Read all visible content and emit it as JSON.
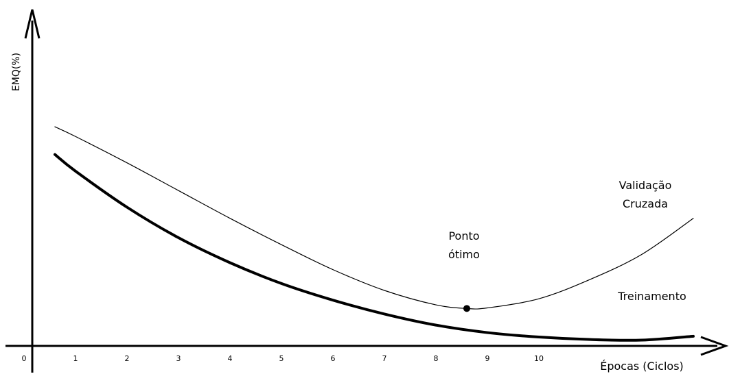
{
  "chart_data": {
    "type": "line",
    "title": "",
    "ylabel": "EMQ(%)",
    "xlabel": "Épocas (Ciclos)",
    "x_ticks": [
      "0",
      "1",
      "2",
      "3",
      "4",
      "5",
      "6",
      "7",
      "8",
      "9",
      "10"
    ],
    "xlim": [
      0,
      13.3
    ],
    "ylim": [
      0,
      100
    ],
    "grid": false,
    "series": [
      {
        "name": "Validação Cruzada",
        "stroke": "thin",
        "points": [
          [
            0.6,
            79
          ],
          [
            1.0,
            75.5
          ],
          [
            2.0,
            66
          ],
          [
            3.0,
            56
          ],
          [
            4.0,
            46
          ],
          [
            5.0,
            36.5
          ],
          [
            6.0,
            27.5
          ],
          [
            7.0,
            20
          ],
          [
            8.0,
            14.8
          ],
          [
            8.6,
            13.5
          ],
          [
            9.0,
            13.7
          ],
          [
            10.0,
            17
          ],
          [
            11.0,
            24
          ],
          [
            12.0,
            33
          ],
          [
            13.0,
            46
          ]
        ]
      },
      {
        "name": "Treinamento",
        "stroke": "thick",
        "points": [
          [
            0.6,
            69
          ],
          [
            1.0,
            63
          ],
          [
            2.0,
            50
          ],
          [
            3.0,
            39
          ],
          [
            4.0,
            30
          ],
          [
            5.0,
            22.5
          ],
          [
            6.0,
            16.5
          ],
          [
            7.0,
            11.5
          ],
          [
            8.0,
            7.5
          ],
          [
            9.0,
            4.8
          ],
          [
            10.0,
            3.2
          ],
          [
            11.0,
            2.3
          ],
          [
            12.0,
            2.1
          ],
          [
            13.0,
            3.5
          ]
        ]
      }
    ],
    "annotations": [
      {
        "label_lines": [
          "Ponto",
          "ótimo"
        ],
        "x": 8.6,
        "y": 13.5,
        "marker": "dot"
      }
    ],
    "series_labels": [
      {
        "series": 0,
        "lines": [
          "Validação",
          "Cruzada"
        ]
      },
      {
        "series": 1,
        "lines": [
          "Treinamento"
        ]
      }
    ]
  }
}
